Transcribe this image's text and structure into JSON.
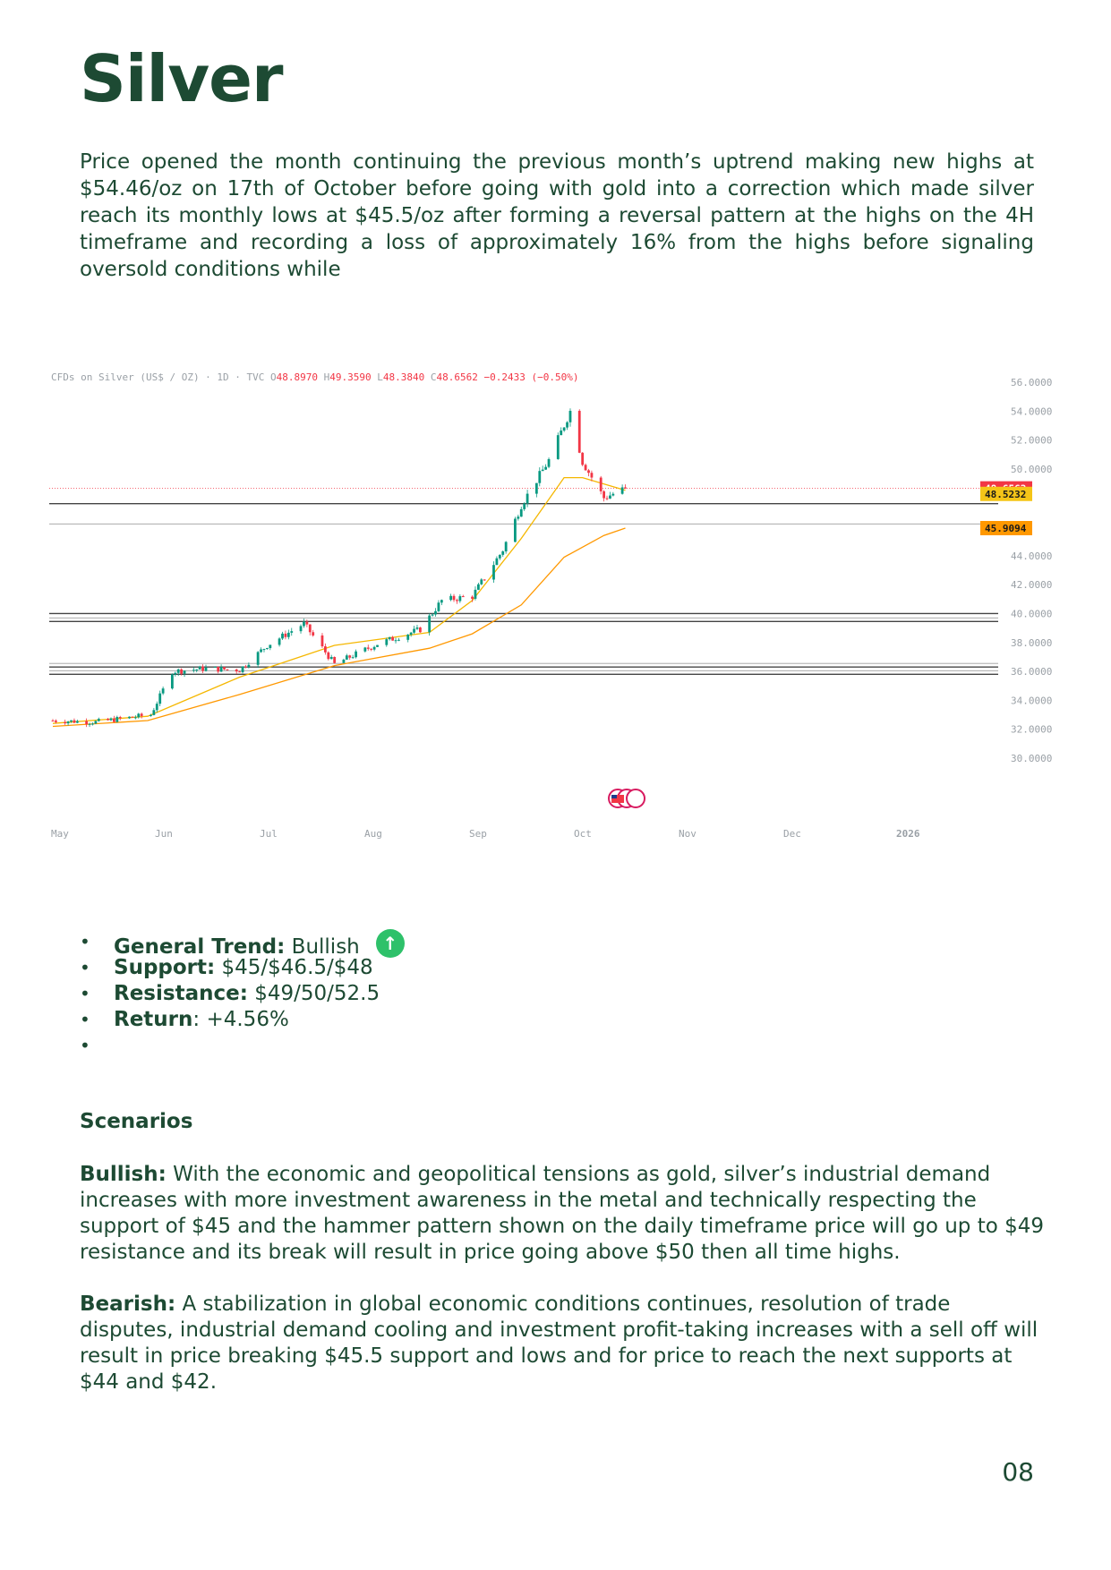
{
  "title": "Silver",
  "intro": "Price opened the month continuing the previous month’s uptrend making new highs at $54.46/oz on 17th of October before going with gold into a correction which made silver reach its monthly lows at $45.5/oz after forming a reversal pattern at the highs on the 4H timeframe and recording a loss of approximately 16% from the highs before signaling oversold conditions while",
  "chart_data": {
    "type": "candlestick",
    "symbol": "CFDs on Silver (US$ / OZ) · 1D · TVC",
    "ohlc_header": {
      "O": "48.8970",
      "H": "49.3590",
      "L": "48.3840",
      "C": "48.6562",
      "change": "−0.2433 (−0.50%)"
    },
    "x_ticks": [
      "May",
      "Jun",
      "Jul",
      "Aug",
      "Sep",
      "Oct",
      "Nov",
      "Dec",
      "2026"
    ],
    "y_ticks": [
      "56.0000",
      "54.0000",
      "52.0000",
      "50.0000",
      "44.0000",
      "42.0000",
      "40.0000",
      "38.0000",
      "36.0000",
      "34.0000",
      "32.0000",
      "30.0000"
    ],
    "ylim": [
      30,
      56
    ],
    "price_labels": [
      {
        "value": "48.6562",
        "color": "#f23645"
      },
      {
        "value": "48.5232",
        "color": "#f5c518"
      },
      {
        "value": "45.9094",
        "color": "#ff9800"
      }
    ],
    "horizontal_levels": [
      47.6,
      46.2,
      40.0,
      39.7,
      39.45,
      36.55,
      36.3,
      36.05,
      35.8
    ],
    "series": [
      {
        "name": "Price",
        "x": [
          "May 1",
          "May 15",
          "Jun 2",
          "Jun 9",
          "Jun 20",
          "Jul 1",
          "Jul 10",
          "Jul 22",
          "Aug 1",
          "Aug 15",
          "Aug 29",
          "Sep 5",
          "Sep 15",
          "Sep 25",
          "Oct 1",
          "Oct 10",
          "Oct 17",
          "Oct 21",
          "Oct 28",
          "Nov 4"
        ],
        "close": [
          32.6,
          32.5,
          33.0,
          36.0,
          36.2,
          36.1,
          37.8,
          39.3,
          36.5,
          37.9,
          38.9,
          40.9,
          41.2,
          44.4,
          47.5,
          50.6,
          54.0,
          50.5,
          48.0,
          48.6562
        ]
      },
      {
        "x": [
          "May 1",
          "Jun 1",
          "Jul 1",
          "Aug 1",
          "Sep 1",
          "Sep 15",
          "Oct 1",
          "Oct 15",
          "Oct 21",
          "Nov 4"
        ],
        "values": [
          32.4,
          32.9,
          35.6,
          37.8,
          38.7,
          40.9,
          45.2,
          49.4,
          49.4,
          48.5232
        ]
      },
      {
        "x": [
          "May 1",
          "Jun 1",
          "Jul 1",
          "Aug 1",
          "Sep 1",
          "Sep 15",
          "Oct 1",
          "Oct 15",
          "Oct 28",
          "Nov 4"
        ],
        "values": [
          32.2,
          32.6,
          34.4,
          36.4,
          37.6,
          38.6,
          40.6,
          43.9,
          45.4,
          45.9094
        ]
      }
    ]
  },
  "summary": {
    "general_trend_label": "General Trend:",
    "general_trend_value": " Bullish",
    "support_label": "Support:",
    "support_value": "  $45/$46.5/$48",
    "resistance_label": "Resistance:",
    "resistance_value": " $49/50/52.5",
    "return_label": " Return",
    "return_value": ": +4.56%"
  },
  "scenarios": {
    "heading": "Scenarios",
    "bullish_label": "Bullish:",
    "bullish_text": " With the economic and geopolitical tensions as gold, silver’s industrial demand increases with more investment awareness in the metal and technically respecting the support of $45 and the hammer pattern shown on the daily timeframe price will go up to $49 resistance and its break will result in price going above $50 then all time highs.",
    "bearish_label": "Bearish:",
    "bearish_text": "  A stabilization in global economic conditions continues, resolution of trade disputes, industrial demand cooling and investment profit-taking increases with a sell off will result in price breaking $45.5 support and lows and for price to reach the next supports at $44 and $42."
  },
  "page_number": "08"
}
